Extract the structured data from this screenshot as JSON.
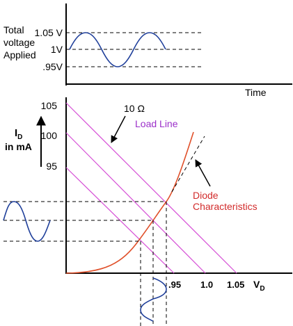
{
  "top_panel": {
    "ylabel_lines": [
      "Total",
      "voltage",
      "Applied"
    ],
    "levels": [
      "1.05 V",
      "1V",
      ".95V"
    ],
    "xlabel": "Time"
  },
  "main_panel": {
    "ylabel_main": "I",
    "ylabel_sub": "D",
    "ylabel_unit": "in mA",
    "y_ticks": [
      "105",
      "100",
      "95"
    ],
    "x_ticks": [
      ".95",
      "1.0",
      "1.05"
    ],
    "xlabel_main": "V",
    "xlabel_sub": "D",
    "resistance_label": "10 Ω",
    "load_line_label": "Load Line",
    "diode_label_lines": [
      "Diode",
      "Characteristics"
    ]
  },
  "colors": {
    "load_line": "#d64fd6",
    "load_line_text": "#9b2fc9",
    "sine": "#1f3f9a",
    "diode": "#e0502a",
    "diode_text": "#d22b2b"
  }
}
